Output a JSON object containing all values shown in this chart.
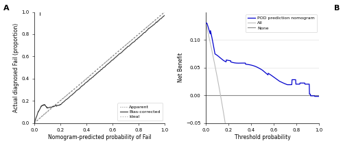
{
  "fig_width": 5.0,
  "fig_height": 2.19,
  "dpi": 100,
  "bg_color": "#ffffff",
  "panel_bg": "#ffffff",
  "left_title": "A",
  "left_xlabel": "Nomogram-predicted probability of Fail",
  "left_ylabel": "Actual diagnosed Fail (proportion)",
  "left_xlim": [
    0.0,
    1.0
  ],
  "left_ylim": [
    0.0,
    1.0
  ],
  "left_xticks": [
    0.0,
    0.2,
    0.4,
    0.6,
    0.8,
    1.0
  ],
  "left_yticks": [
    0.0,
    0.2,
    0.4,
    0.6,
    0.8,
    1.0
  ],
  "right_title": "B",
  "right_xlabel": "Threshold probability",
  "right_ylabel": "Net Benefit",
  "right_xlim": [
    0.0,
    1.0
  ],
  "right_ylim": [
    -0.05,
    0.15
  ],
  "right_xticks": [
    0.0,
    0.2,
    0.4,
    0.6,
    0.8,
    1.0
  ],
  "right_yticks": [
    -0.05,
    0.0,
    0.05,
    0.1
  ],
  "legend1_labels": [
    "Apparent",
    "Bias-corrected",
    "Ideal"
  ],
  "legend2_labels": [
    "POD prediction nomogram",
    "All",
    "None"
  ],
  "apparent_color": "#888888",
  "biascorrected_color": "#333333",
  "ideal_color": "#aaaaaa",
  "nomogram_color": "#0000cc",
  "all_color": "#bbbbbb",
  "none_color": "#888888",
  "tick_label_fontsize": 5,
  "axis_label_fontsize": 5.5,
  "legend_fontsize": 4.5,
  "panel_label_fontsize": 8
}
